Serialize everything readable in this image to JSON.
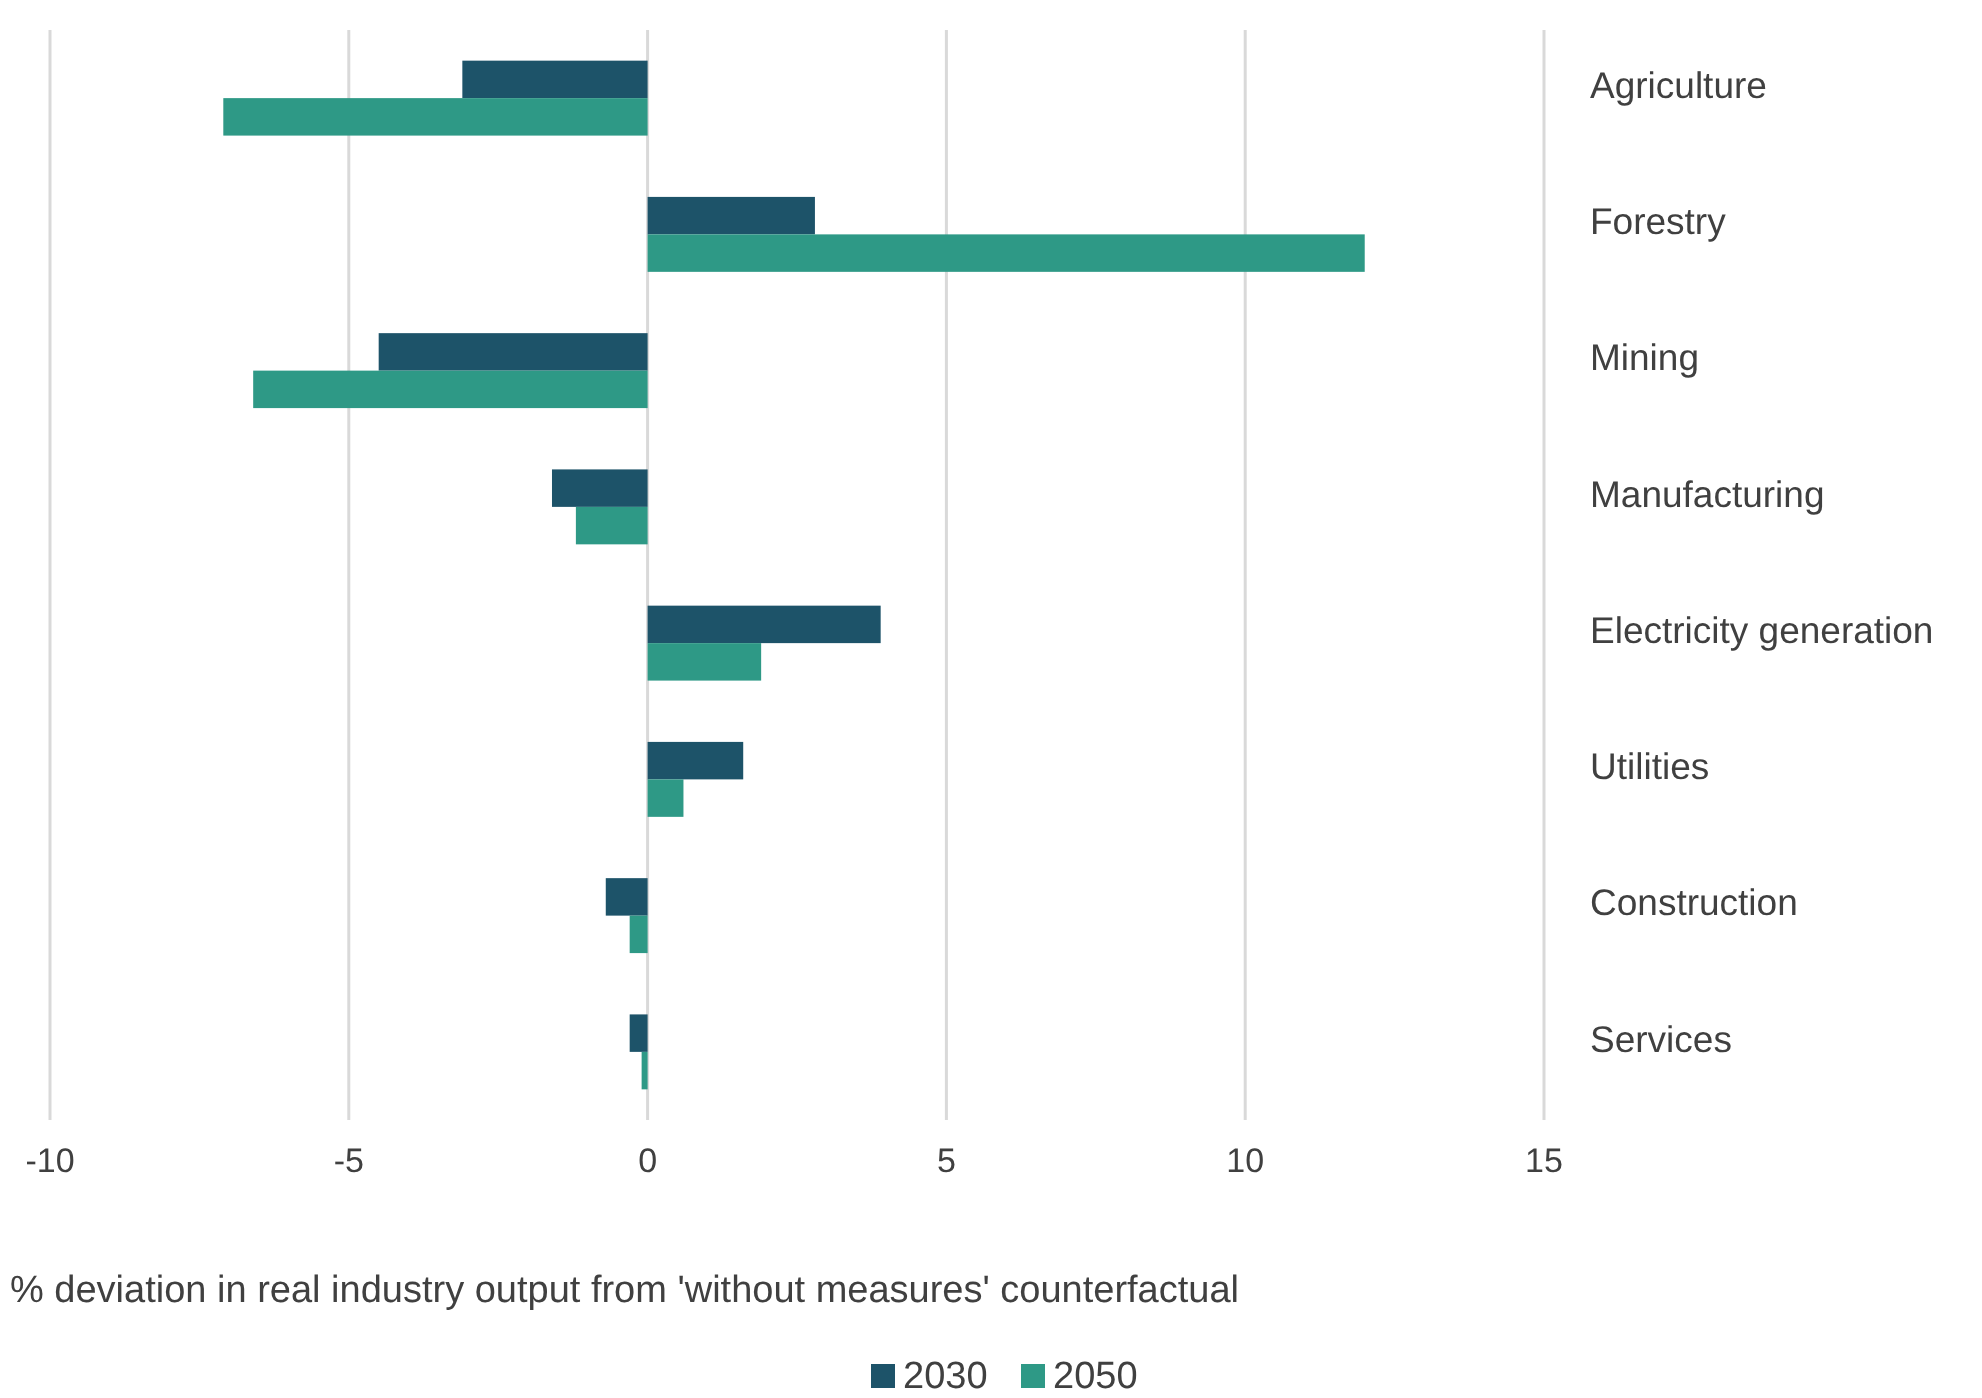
{
  "chart_data": {
    "type": "bar",
    "orientation": "horizontal",
    "xlabel": "% deviation in real industry output from 'without measures' counterfactual",
    "categories": [
      "Agriculture",
      "Forestry",
      "Mining",
      "Manufacturing",
      "Electricity generation",
      "Utilities",
      "Construction",
      "Services"
    ],
    "series": [
      {
        "name": "2030",
        "color": "#1d5369",
        "values": [
          -3.1,
          2.8,
          -4.5,
          -1.6,
          3.9,
          1.6,
          -0.7,
          -0.3
        ]
      },
      {
        "name": "2050",
        "color": "#2e9986",
        "values": [
          -7.1,
          12.0,
          -6.6,
          -1.2,
          1.9,
          0.6,
          -0.3,
          -0.1
        ]
      }
    ],
    "xlim": [
      -10,
      15
    ],
    "xticks": [
      -10,
      -5,
      0,
      5,
      10,
      15
    ],
    "grid": "x",
    "legend": "bottom"
  }
}
